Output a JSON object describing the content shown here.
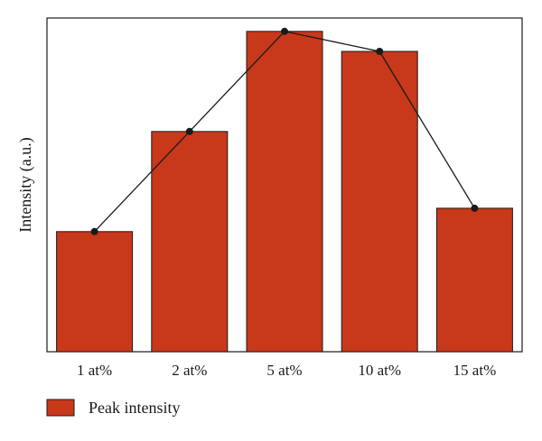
{
  "chart_data": {
    "type": "bar",
    "categories": [
      "1 at%",
      "2 at%",
      "5 at%",
      "10 at%",
      "15 at%"
    ],
    "series": [
      {
        "name": "Peak intensity",
        "values": [
          36,
          66,
          96,
          90,
          43
        ],
        "color": "#c8381a"
      }
    ],
    "overlay_line": {
      "values": [
        36,
        66,
        96,
        90,
        43
      ],
      "color": "#1a1a1a"
    },
    "title": "",
    "xlabel": "",
    "ylabel": "Intensity (a.u.)",
    "ylim": [
      0,
      100
    ],
    "y_ticks_shown": false,
    "grid": false,
    "legend_position": "bottom-left"
  }
}
